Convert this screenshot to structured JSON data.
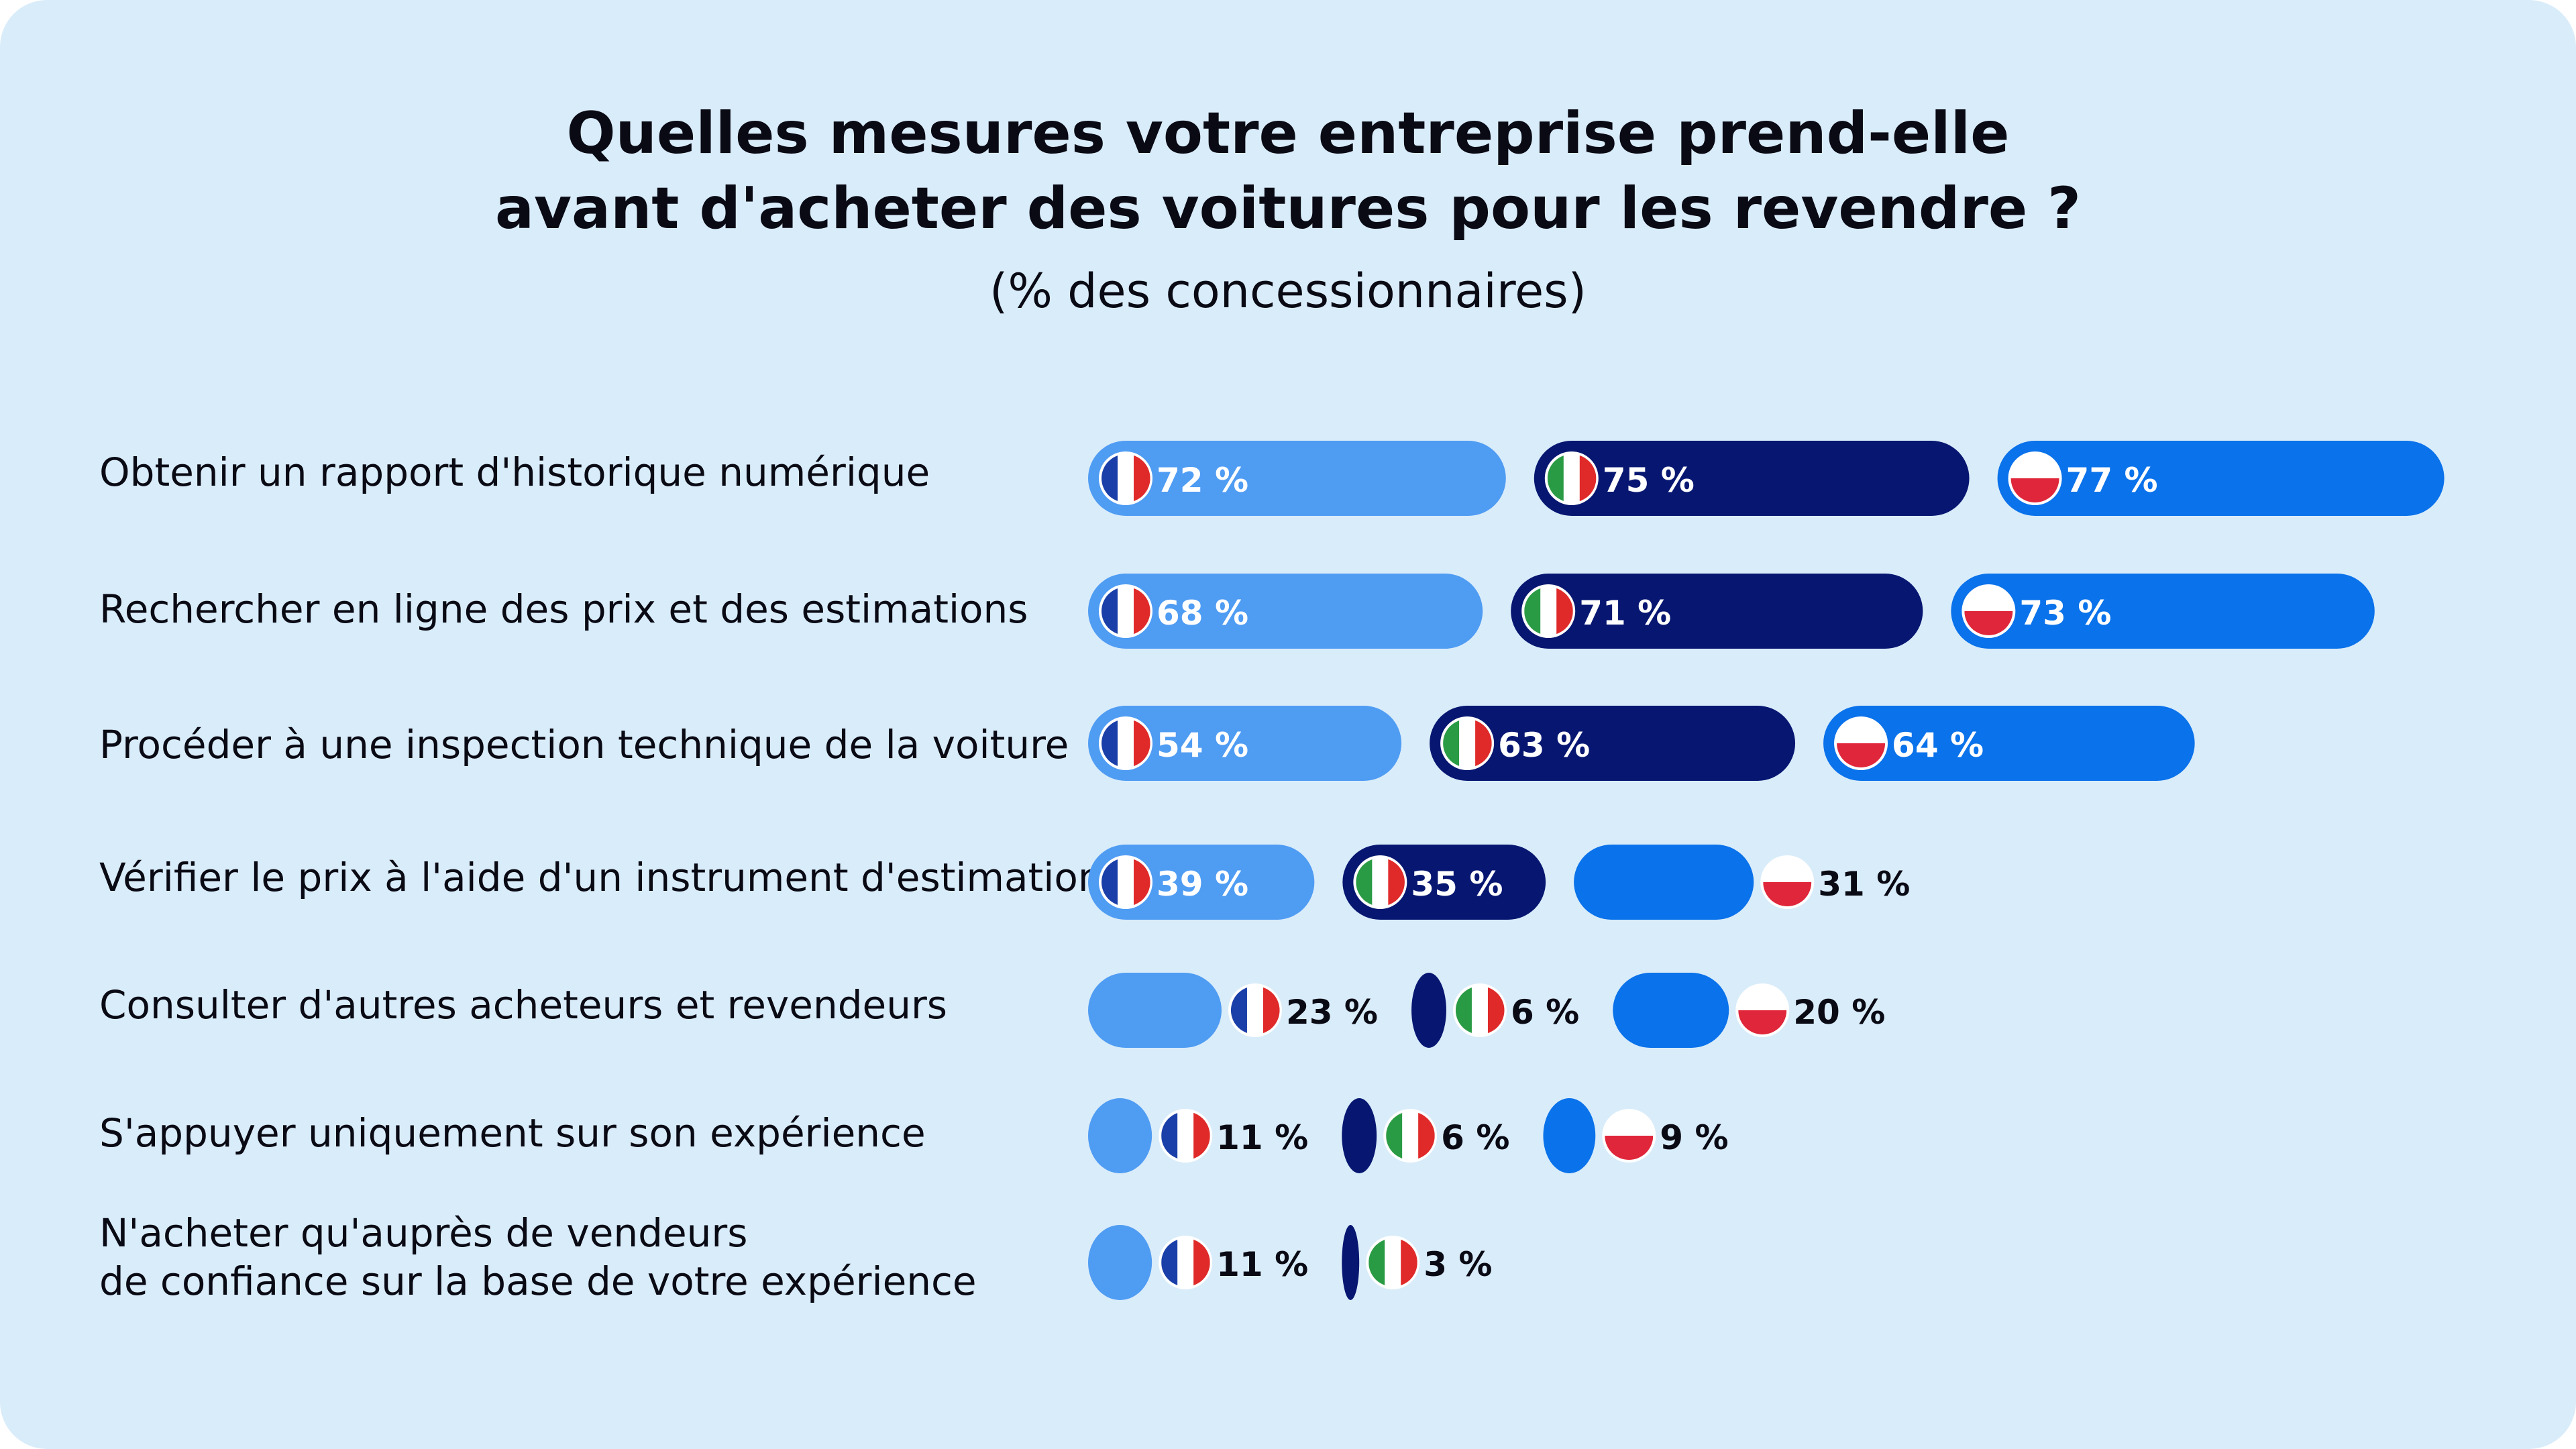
{
  "colors": {
    "background": "#d9ecfa",
    "fr": "#4f9cf3",
    "it": "#071771",
    "pl": "#0a72ea",
    "label_on_bar": "#ffffff",
    "label_off_bar": "#0a0a14"
  },
  "header": {
    "title_line1": "Quelles mesures votre entreprise prend-elle",
    "title_line2": "avant d'acheter des voitures pour les revendre ?",
    "subtitle": "(% des concessionnaires)"
  },
  "chart_data": {
    "type": "bar",
    "orientation": "horizontal-grouped",
    "title": "Quelles mesures votre entreprise prend-elle avant d'acheter des voitures pour les revendre ?",
    "subtitle": "(% des concessionnaires)",
    "unit": "%",
    "categories": [
      "Obtenir un rapport d'historique numérique",
      "Rechercher en ligne des prix et des estimations",
      "Procéder à une inspection technique de la voiture",
      "Vérifier le prix à l'aide d'un instrument d'estimation",
      "Consulter d'autres acheteurs et revendeurs",
      "S'appuyer uniquement sur son expérience",
      "N'acheter qu'auprès de vendeurs de confiance sur la base de votre expérience"
    ],
    "category_lines": [
      [
        "Obtenir un rapport d'historique numérique"
      ],
      [
        "Rechercher en ligne des prix et des estimations"
      ],
      [
        "Procéder à une inspection technique de la voiture"
      ],
      [
        "Vérifier le prix à l'aide d'un instrument d'estimation"
      ],
      [
        "Consulter d'autres acheteurs et revendeurs"
      ],
      [
        "S'appuyer uniquement sur son expérience"
      ],
      [
        "N'acheter qu'auprès de vendeurs",
        "de confiance sur la base de votre expérience"
      ]
    ],
    "series": [
      {
        "name": "France",
        "flag": "fr",
        "values": [
          72,
          68,
          54,
          39,
          23,
          11,
          11
        ],
        "labels": [
          "72 %",
          "68 %",
          "54 %",
          "39 %",
          "23 %",
          "11 %",
          "11 %"
        ]
      },
      {
        "name": "Italie",
        "flag": "it",
        "values": [
          75,
          71,
          63,
          35,
          6,
          6,
          3
        ],
        "labels": [
          "75 %",
          "71 %",
          "63 %",
          "35 %",
          "6 %",
          "6 %",
          "3 %"
        ]
      },
      {
        "name": "Pologne",
        "flag": "pl",
        "values": [
          77,
          73,
          64,
          31,
          20,
          9,
          null
        ],
        "labels": [
          "77 %",
          "73 %",
          "64 %",
          "31 %",
          "20 %",
          "9 %",
          null
        ]
      }
    ],
    "legend": "flags inside/next to bars",
    "grid": false
  }
}
